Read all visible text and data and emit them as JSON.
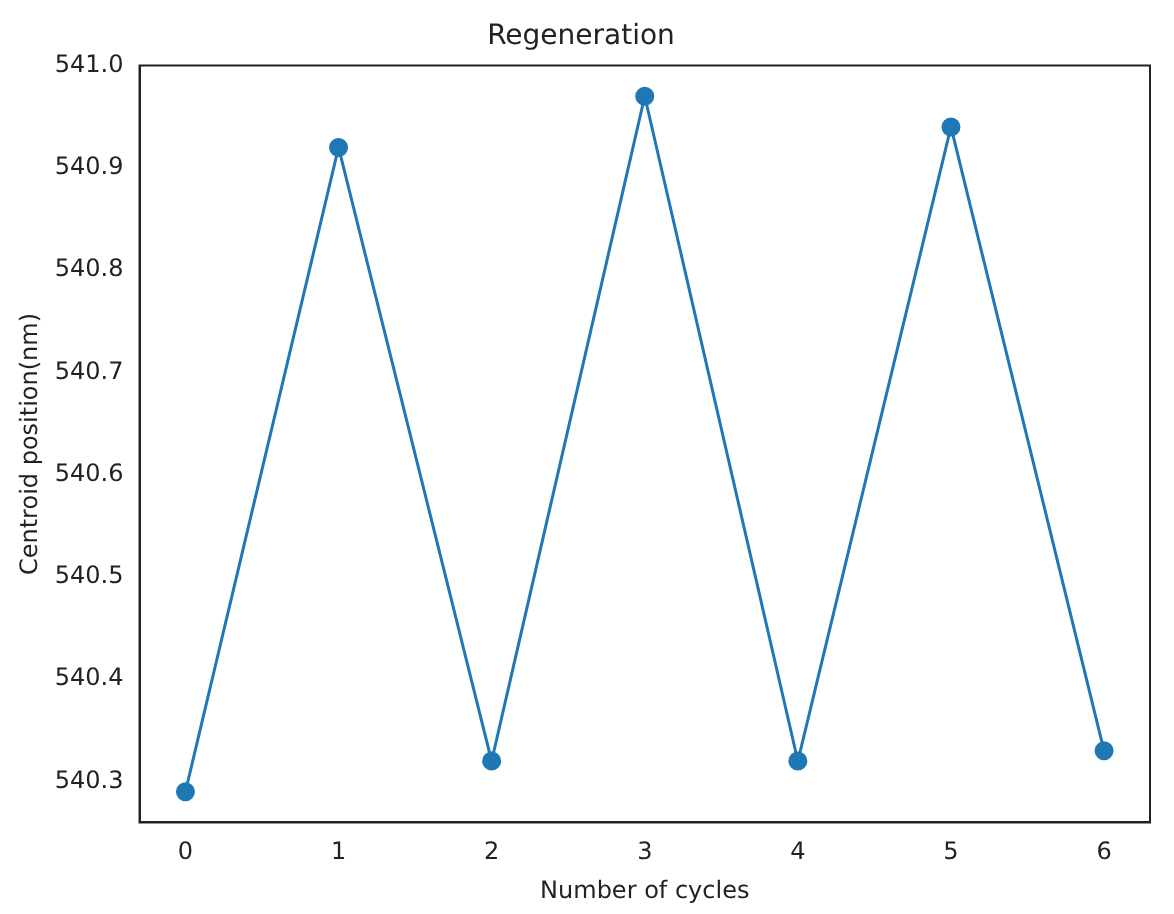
{
  "chart_data": {
    "type": "line",
    "title": "Regeneration",
    "xlabel": "Number of cycles",
    "ylabel": "Centroid position(nm)",
    "x": [
      0,
      1,
      2,
      3,
      4,
      5,
      6
    ],
    "series": [
      {
        "color": "#1f77b4",
        "values": [
          540.29,
          540.92,
          540.32,
          540.97,
          540.32,
          540.94,
          540.33
        ]
      }
    ],
    "xlim": [
      -0.3,
      6.3
    ],
    "xticks": [
      0,
      1,
      2,
      3,
      4,
      5,
      6
    ],
    "ylim": [
      540.26,
      541.0
    ],
    "yticks": [
      540.3,
      540.4,
      540.5,
      540.6,
      540.7,
      540.8,
      540.9,
      {
        "value": 541,
        "label": "541.0"
      }
    ],
    "grid": false,
    "legend": false,
    "marker": "circle",
    "line_style": "solid"
  }
}
